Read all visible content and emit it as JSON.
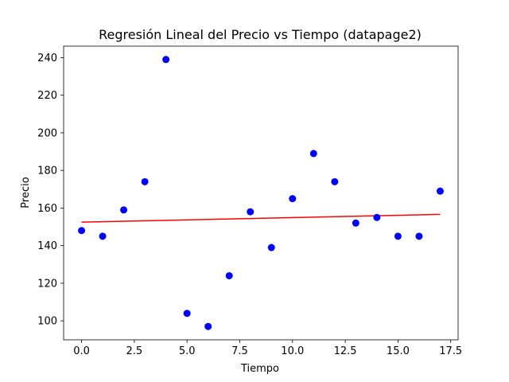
{
  "chart_data": {
    "type": "scatter",
    "title": "Regresión Lineal del Precio vs Tiempo (datapage2)",
    "xlabel": "Tiempo",
    "ylabel": "Precio",
    "xlim": [
      -0.85,
      17.85
    ],
    "ylim": [
      89.9,
      246.1
    ],
    "xticks": [
      0.0,
      2.5,
      5.0,
      7.5,
      10.0,
      12.5,
      15.0,
      17.5
    ],
    "xtick_labels": [
      "0.0",
      "2.5",
      "5.0",
      "7.5",
      "10.0",
      "12.5",
      "15.0",
      "17.5"
    ],
    "yticks": [
      100,
      120,
      140,
      160,
      180,
      200,
      220,
      240
    ],
    "ytick_labels": [
      "100",
      "120",
      "140",
      "160",
      "180",
      "200",
      "220",
      "240"
    ],
    "grid": false,
    "points": {
      "color": "#0000ff",
      "x": [
        0,
        1,
        2,
        3,
        4,
        5,
        6,
        7,
        8,
        9,
        10,
        11,
        12,
        13,
        14,
        15,
        16,
        17
      ],
      "y": [
        148,
        145,
        159,
        174,
        239,
        104,
        97,
        124,
        158,
        139,
        165,
        189,
        174,
        152,
        155,
        145,
        145,
        169
      ]
    },
    "regression_line": {
      "color": "#ff0000",
      "x": [
        0,
        17
      ],
      "y": [
        152.5,
        156.6
      ]
    }
  }
}
